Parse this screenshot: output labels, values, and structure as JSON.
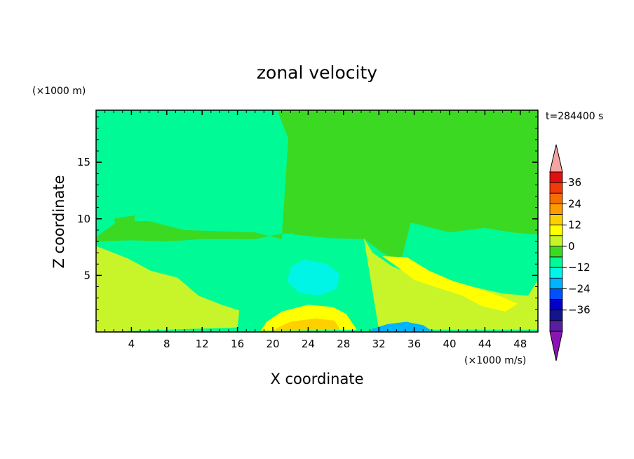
{
  "chart_data": {
    "type": "heatmap",
    "subtype": "filled-contour",
    "title": "zonal velocity",
    "xlabel": "X coordinate",
    "ylabel": "Z coordinate",
    "x_unit_label": "(×1000 m/s)",
    "y_unit_label": "(×1000 m)",
    "time_label": "t=284400 s",
    "xlim": [
      0,
      50
    ],
    "ylim": [
      0,
      19.6
    ],
    "x_ticks": [
      4,
      8,
      12,
      16,
      20,
      24,
      28,
      32,
      36,
      40,
      44,
      48
    ],
    "y_ticks": [
      5,
      10,
      15
    ],
    "colorbar": {
      "tick_labels": [
        "36",
        "24",
        "12",
        "0",
        "−12",
        "−24",
        "−36"
      ],
      "tick_values": [
        36,
        24,
        12,
        0,
        -12,
        -24,
        -36
      ],
      "levels": [
        {
          "min": 36,
          "max": 42,
          "color": "#e01010"
        },
        {
          "min": 30,
          "max": 36,
          "color": "#f03a0a"
        },
        {
          "min": 24,
          "max": 30,
          "color": "#f56e00"
        },
        {
          "min": 18,
          "max": 24,
          "color": "#ff9a00"
        },
        {
          "min": 12,
          "max": 18,
          "color": "#ffd000"
        },
        {
          "min": 6,
          "max": 12,
          "color": "#ffff00"
        },
        {
          "min": 0,
          "max": 6,
          "color": "#c8f52a"
        },
        {
          "min": -6,
          "max": 0,
          "color": "#3cd923"
        },
        {
          "min": -12,
          "max": -6,
          "color": "#00fa96"
        },
        {
          "min": -18,
          "max": -12,
          "color": "#00f5e6"
        },
        {
          "min": -24,
          "max": -18,
          "color": "#00b4ff"
        },
        {
          "min": -30,
          "max": -24,
          "color": "#0050ff"
        },
        {
          "min": -36,
          "max": -30,
          "color": "#0000c8"
        },
        {
          "min": -42,
          "max": -36,
          "color": "#14148c"
        },
        {
          "min": -48,
          "max": -42,
          "color": "#5a1ea0"
        }
      ],
      "over_color": "#f4a4a4",
      "under_color": "#8c14b4"
    },
    "regions": [
      {
        "label": "mid-troposphere -6..0 band",
        "value_range": [
          -6,
          0
        ],
        "points": [
          [
            0,
            8.4
          ],
          [
            2.5,
            9.8
          ],
          [
            6,
            9.8
          ],
          [
            10,
            9
          ],
          [
            18,
            8.8
          ],
          [
            21,
            8.2
          ],
          [
            22,
            20
          ],
          [
            50,
            20
          ],
          [
            50,
            8.6
          ],
          [
            47,
            8.8
          ],
          [
            44,
            9.2
          ],
          [
            40,
            8.8
          ],
          [
            36,
            9.6
          ],
          [
            32,
            10
          ],
          [
            29,
            8.8
          ],
          [
            25,
            8.7
          ],
          [
            21,
            8.7
          ],
          [
            18,
            8.2
          ],
          [
            12,
            8.2
          ],
          [
            8,
            8
          ],
          [
            4,
            8.1
          ],
          [
            0,
            8
          ]
        ]
      },
      {
        "label": "upper mid-domain -6..0 column",
        "value_range": [
          -6,
          0
        ],
        "points": [
          [
            20.5,
            19.6
          ],
          [
            22.6,
            15.4
          ],
          [
            23.5,
            10.3
          ],
          [
            22.4,
            8.6
          ],
          [
            26.2,
            8.3
          ],
          [
            30.4,
            8.2
          ],
          [
            32.4,
            7
          ],
          [
            34.5,
            6.2
          ],
          [
            36,
            10.9
          ],
          [
            40.9,
            10.6
          ],
          [
            44,
            13.9
          ],
          [
            41.8,
            16.4
          ],
          [
            42.5,
            19.6
          ]
        ]
      },
      {
        "label": "upper-left -6..0 patch",
        "value_range": [
          -6,
          0
        ],
        "points": [
          [
            2,
            10
          ],
          [
            4.4,
            10.3
          ],
          [
            4.3,
            9.2
          ],
          [
            2.4,
            9.1
          ]
        ]
      },
      {
        "label": "low-level 0..6 wedge left",
        "value_range": [
          0,
          6
        ],
        "points": [
          [
            0,
            7.6
          ],
          [
            3.6,
            6.5
          ],
          [
            6.2,
            5.4
          ],
          [
            9.2,
            4.8
          ],
          [
            11.6,
            3.2
          ],
          [
            14.2,
            2.4
          ],
          [
            16.2,
            1.9
          ],
          [
            16,
            0.4
          ],
          [
            0,
            0
          ]
        ]
      },
      {
        "label": "low-level 0..6 wedge right",
        "value_range": [
          0,
          6
        ],
        "points": [
          [
            30.3,
            8.3
          ],
          [
            31.3,
            7
          ],
          [
            33.5,
            5.8
          ],
          [
            36.6,
            4.8
          ],
          [
            39.5,
            4.1
          ],
          [
            42.6,
            4
          ],
          [
            46,
            3.4
          ],
          [
            48.9,
            3.2
          ],
          [
            50,
            4.6
          ],
          [
            50,
            0.2
          ],
          [
            32,
            0.2
          ]
        ]
      },
      {
        "label": "surface jet 6..12",
        "value_range": [
          6,
          12
        ],
        "points": [
          [
            19.3,
            0.9
          ],
          [
            21,
            1.8
          ],
          [
            24,
            2.4
          ],
          [
            26.8,
            2.2
          ],
          [
            28.3,
            1.6
          ],
          [
            29.5,
            0.2
          ],
          [
            18.6,
            0.1
          ]
        ]
      },
      {
        "label": "surface jet 12..18 core",
        "value_range": [
          12,
          18
        ],
        "points": [
          [
            20.6,
            0.4
          ],
          [
            22,
            0.9
          ],
          [
            24.8,
            1.2
          ],
          [
            27,
            1
          ],
          [
            27.6,
            0.2
          ],
          [
            20,
            0.1
          ]
        ]
      },
      {
        "label": "tilted 6..12 band right",
        "value_range": [
          6,
          12
        ],
        "points": [
          [
            32.4,
            6.7
          ],
          [
            34,
            5.8
          ],
          [
            36,
            4.6
          ],
          [
            38.7,
            3.9
          ],
          [
            41.5,
            3.2
          ],
          [
            43.6,
            2.3
          ],
          [
            46.3,
            1.8
          ],
          [
            47.7,
            2.5
          ],
          [
            45.6,
            3.2
          ],
          [
            43,
            3.9
          ],
          [
            40.4,
            4.5
          ],
          [
            37.7,
            5.4
          ],
          [
            35.2,
            6.6
          ]
        ]
      },
      {
        "label": "negative core -18..-12 centre",
        "value_range": [
          -18,
          -12
        ],
        "points": [
          [
            22.1,
            5.8
          ],
          [
            23.5,
            6.4
          ],
          [
            26.1,
            6
          ],
          [
            27.6,
            5.1
          ],
          [
            27.2,
            3.8
          ],
          [
            25.2,
            3.2
          ],
          [
            22.9,
            3.5
          ],
          [
            21.6,
            4.5
          ]
        ]
      },
      {
        "label": "negative surface core -24..-18",
        "value_range": [
          -24,
          -18
        ],
        "points": [
          [
            31.3,
            0.3
          ],
          [
            33,
            0.7
          ],
          [
            35.1,
            0.9
          ],
          [
            37,
            0.6
          ],
          [
            38,
            0.1
          ],
          [
            31,
            0
          ]
        ]
      }
    ]
  }
}
